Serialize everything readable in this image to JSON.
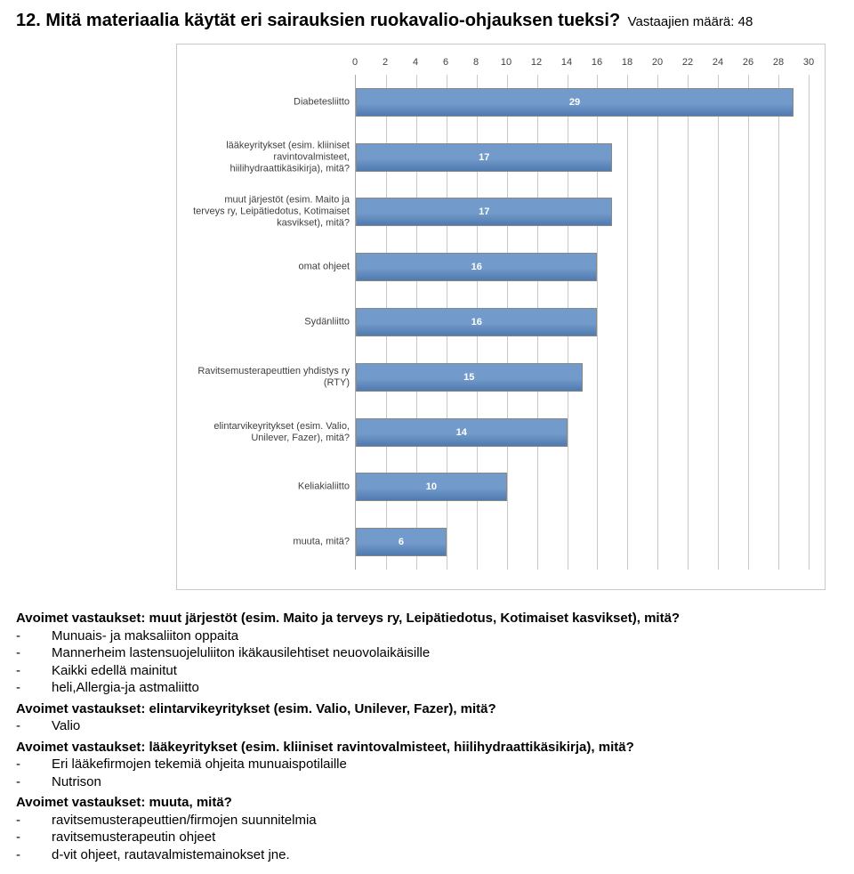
{
  "title": {
    "main": "12. Mitä materiaalia käytät eri sairauksien ruokavalio-ohjauksen tueksi?",
    "sub": "Vastaajien määrä: 48"
  },
  "chart": {
    "type": "bar-horizontal",
    "x_min": 0,
    "x_max": 30,
    "x_tick_step": 2,
    "bar_fill": "#729aca",
    "bar_fill_dark": "#4f7ab0",
    "bar_border": "#888888",
    "grid_color": "#c9c9c9",
    "axis_color": "#a9a9a9",
    "tick_fontsize": 11,
    "label_fontsize": 11,
    "value_label_color": "#ffffff",
    "categories": [
      {
        "label": "Diabetesliitto",
        "value": 29
      },
      {
        "label": "lääkeyritykset (esim. kliiniset ravintovalmisteet, hiilihydraattikäsikirja), mitä?",
        "value": 17
      },
      {
        "label": "muut järjestöt (esim. Maito ja terveys ry, Leipätiedotus, Kotimaiset kasvikset), mitä?",
        "value": 17
      },
      {
        "label": "omat ohjeet",
        "value": 16
      },
      {
        "label": "Sydänliitto",
        "value": 16
      },
      {
        "label": "Ravitsemusterapeuttien yhdistys ry (RTY)",
        "value": 15
      },
      {
        "label": "elintarvikeyritykset (esim. Valio, Unilever, Fazer), mitä?",
        "value": 14
      },
      {
        "label": "Keliakialiitto",
        "value": 10
      },
      {
        "label": "muuta, mitä?",
        "value": 6
      }
    ]
  },
  "answers": [
    {
      "heading": "Avoimet vastaukset: muut järjestöt (esim. Maito ja terveys ry, Leipätiedotus, Kotimaiset kasvikset), mitä?",
      "items": [
        "Munuais- ja maksaliiton oppaita",
        "Mannerheim lastensuojeluliiton ikäkausilehtiset neuovolaikäisille",
        "Kaikki edellä mainitut",
        "heli,Allergia-ja astmaliitto"
      ]
    },
    {
      "heading": "Avoimet vastaukset: elintarvikeyritykset (esim. Valio, Unilever, Fazer), mitä?",
      "items": [
        "Valio"
      ]
    },
    {
      "heading": "Avoimet vastaukset: lääkeyritykset (esim. kliiniset ravintovalmisteet, hiilihydraattikäsikirja), mitä?",
      "items": [
        "Eri lääkefirmojen tekemiä ohjeita munuaispotilaille",
        "Nutrison"
      ]
    },
    {
      "heading": "Avoimet vastaukset: muuta, mitä?",
      "items": [
        "ravitsemusterapeuttien/firmojen suunnitelmia",
        "ravitsemusterapeutin ohjeet",
        "d-vit ohjeet, rautavalmistemainokset jne."
      ]
    }
  ]
}
